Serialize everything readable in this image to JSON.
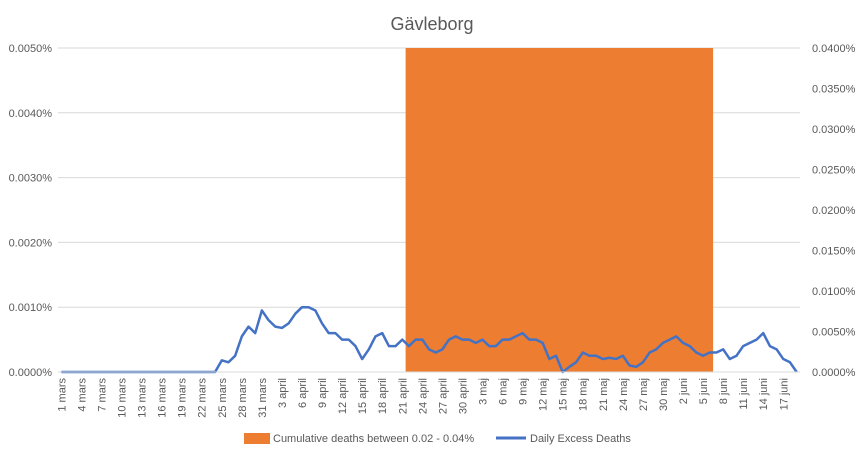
{
  "chart_data": {
    "type": "line",
    "title": "Gävleborg",
    "y_left": {
      "min": 0,
      "max": 0.005,
      "ticks": [
        "0.0000%",
        "0.0010%",
        "0.0020%",
        "0.0030%",
        "0.0040%",
        "0.0050%"
      ]
    },
    "y_right": {
      "min": 0,
      "max": 0.04,
      "ticks": [
        "0.0000%",
        "0.0050%",
        "0.0100%",
        "0.0150%",
        "0.0200%",
        "0.0250%",
        "0.0300%",
        "0.0350%",
        "0.0400%"
      ]
    },
    "x_tick_labels": [
      "1 mars",
      "4 mars",
      "7 mars",
      "10 mars",
      "13 mars",
      "16 mars",
      "19 mars",
      "22 mars",
      "25 mars",
      "28 mars",
      "31 mars",
      "3 april",
      "6 april",
      "9 april",
      "12 april",
      "15 april",
      "18 april",
      "21 april",
      "24 april",
      "27 april",
      "30 april",
      "3 maj",
      "6 maj",
      "9 maj",
      "12 maj",
      "15 maj",
      "18 maj",
      "21 maj",
      "24 maj",
      "27 maj",
      "30 maj",
      "2 juni",
      "5 juni",
      "8 juni",
      "11 juni",
      "14 juni",
      "17 juni"
    ],
    "x_count": 111,
    "band": {
      "name": "Cumulative deaths between 0.02 - 0.04%",
      "start_index": 52,
      "end_index": 97,
      "color": "#ED7D31"
    },
    "series": [
      {
        "name": "Daily Excess Deaths",
        "color": "#4472C4",
        "values": [
          0,
          0,
          0,
          0,
          0,
          0,
          0,
          0,
          0,
          0,
          0,
          0,
          0,
          0,
          0,
          0,
          0,
          0,
          0,
          0,
          0,
          0,
          0,
          0,
          0.00018,
          0.00015,
          0.00025,
          0.00055,
          0.0007,
          0.0006,
          0.00095,
          0.0008,
          0.0007,
          0.00068,
          0.00075,
          0.0009,
          0.001,
          0.001,
          0.00095,
          0.00075,
          0.0006,
          0.0006,
          0.0005,
          0.0005,
          0.0004,
          0.0002,
          0.00035,
          0.00055,
          0.0006,
          0.0004,
          0.0004,
          0.0005,
          0.0004,
          0.0005,
          0.0005,
          0.00035,
          0.0003,
          0.00035,
          0.0005,
          0.00055,
          0.0005,
          0.0005,
          0.00045,
          0.0005,
          0.0004,
          0.0004,
          0.0005,
          0.0005,
          0.00055,
          0.0006,
          0.0005,
          0.0005,
          0.00045,
          0.0002,
          0.00025,
          0,
          8e-05,
          0.00015,
          0.0003,
          0.00025,
          0.00025,
          0.0002,
          0.00022,
          0.0002,
          0.00025,
          0.0001,
          8e-05,
          0.00015,
          0.0003,
          0.00035,
          0.00045,
          0.0005,
          0.00055,
          0.00045,
          0.0004,
          0.0003,
          0.00025,
          0.0003,
          0.0003,
          0.00035,
          0.0002,
          0.00025,
          0.0004,
          0.00045,
          0.0005,
          0.0006,
          0.0004,
          0.00035,
          0.0002,
          0.00015,
          0
        ]
      }
    ],
    "legend": {
      "position": "bottom",
      "items": [
        {
          "label": "Cumulative deaths between 0.02 - 0.04%",
          "color": "#ED7D31",
          "kind": "box"
        },
        {
          "label": "Daily Excess Deaths",
          "color": "#4472C4",
          "kind": "line"
        }
      ]
    },
    "grid": true
  }
}
